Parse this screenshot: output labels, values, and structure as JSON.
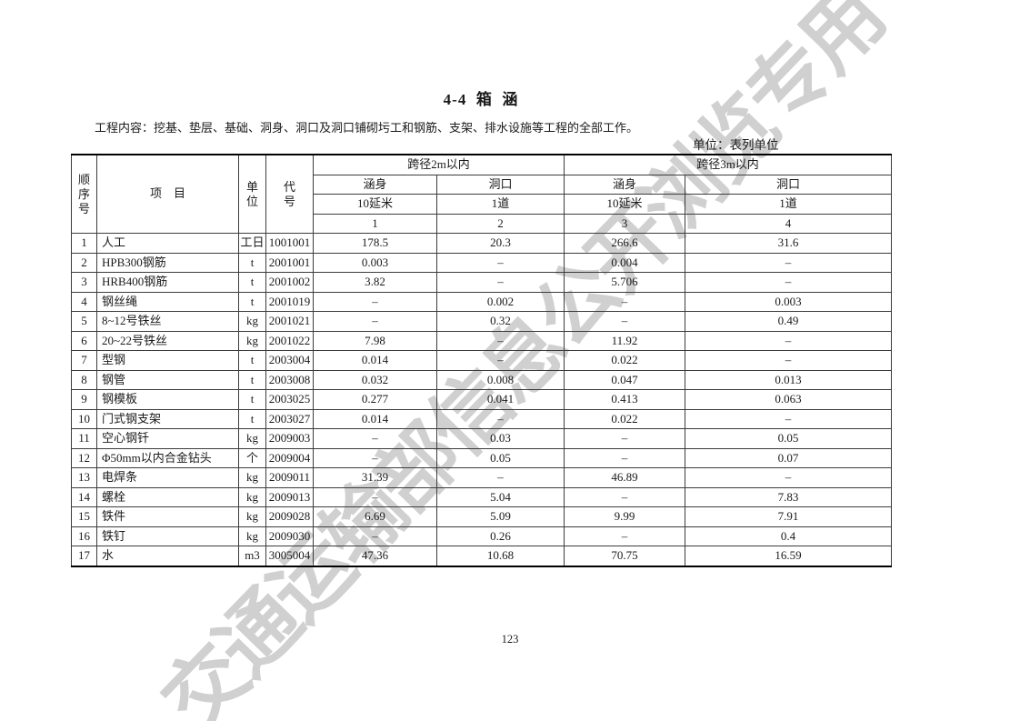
{
  "page": {
    "title": "4-4  箱  涵",
    "content_note": "工程内容：挖基、垫层、基础、洞身、洞口及洞口铺砌圬工和钢筋、支架、排水设施等工程的全部工作。",
    "unit_note": "单位：表列单位",
    "page_number": "123",
    "watermark": "交通运输部信息公开浏览专用"
  },
  "colors": {
    "text": "#1a1a1a",
    "table_line": "#3c3c3c",
    "thick_border": "#000000",
    "watermark_gray": "#c5c5c5"
  },
  "table": {
    "header": {
      "seq": "顺序号",
      "item": "项　目",
      "unit": "单位",
      "code": "代号",
      "group_2m": "跨径2m以内",
      "group_3m": "跨径3m以内",
      "sub_body_2m": "涵身",
      "sub_portal_2m": "洞口",
      "sub_body_3m": "涵身",
      "sub_portal_3m": "洞口",
      "qty_body_2m": "10延米",
      "qty_portal_2m": "1道",
      "qty_body_3m": "10延米",
      "qty_portal_3m": "1道",
      "col_no_1": "1",
      "col_no_2": "2",
      "col_no_3": "3",
      "col_no_4": "4"
    },
    "rows": [
      {
        "seq": "1",
        "item": "人工",
        "unit": "工日",
        "code": "1001001",
        "v1": "178.5",
        "v2": "20.3",
        "v3": "266.6",
        "v4": "31.6"
      },
      {
        "seq": "2",
        "item": "HPB300钢筋",
        "unit": "t",
        "code": "2001001",
        "v1": "0.003",
        "v2": "–",
        "v3": "0.004",
        "v4": "–"
      },
      {
        "seq": "3",
        "item": "HRB400钢筋",
        "unit": "t",
        "code": "2001002",
        "v1": "3.82",
        "v2": "–",
        "v3": "5.706",
        "v4": "–"
      },
      {
        "seq": "4",
        "item": "钢丝绳",
        "unit": "t",
        "code": "2001019",
        "v1": "–",
        "v2": "0.002",
        "v3": "–",
        "v4": "0.003"
      },
      {
        "seq": "5",
        "item": "8~12号铁丝",
        "unit": "kg",
        "code": "2001021",
        "v1": "–",
        "v2": "0.32",
        "v3": "–",
        "v4": "0.49"
      },
      {
        "seq": "6",
        "item": "20~22号铁丝",
        "unit": "kg",
        "code": "2001022",
        "v1": "7.98",
        "v2": "–",
        "v3": "11.92",
        "v4": "–"
      },
      {
        "seq": "7",
        "item": "型钢",
        "unit": "t",
        "code": "2003004",
        "v1": "0.014",
        "v2": "–",
        "v3": "0.022",
        "v4": "–"
      },
      {
        "seq": "8",
        "item": "钢管",
        "unit": "t",
        "code": "2003008",
        "v1": "0.032",
        "v2": "0.008",
        "v3": "0.047",
        "v4": "0.013"
      },
      {
        "seq": "9",
        "item": "钢模板",
        "unit": "t",
        "code": "2003025",
        "v1": "0.277",
        "v2": "0.041",
        "v3": "0.413",
        "v4": "0.063"
      },
      {
        "seq": "10",
        "item": "门式钢支架",
        "unit": "t",
        "code": "2003027",
        "v1": "0.014",
        "v2": "–",
        "v3": "0.022",
        "v4": "–"
      },
      {
        "seq": "11",
        "item": "空心钢钎",
        "unit": "kg",
        "code": "2009003",
        "v1": "–",
        "v2": "0.03",
        "v3": "–",
        "v4": "0.05"
      },
      {
        "seq": "12",
        "item": "Φ50mm以内合金钻头",
        "unit": "个",
        "code": "2009004",
        "v1": "–",
        "v2": "0.05",
        "v3": "–",
        "v4": "0.07"
      },
      {
        "seq": "13",
        "item": "电焊条",
        "unit": "kg",
        "code": "2009011",
        "v1": "31.39",
        "v2": "–",
        "v3": "46.89",
        "v4": "–"
      },
      {
        "seq": "14",
        "item": "螺栓",
        "unit": "kg",
        "code": "2009013",
        "v1": "–",
        "v2": "5.04",
        "v3": "–",
        "v4": "7.83"
      },
      {
        "seq": "15",
        "item": "铁件",
        "unit": "kg",
        "code": "2009028",
        "v1": "6.69",
        "v2": "5.09",
        "v3": "9.99",
        "v4": "7.91"
      },
      {
        "seq": "16",
        "item": "铁钉",
        "unit": "kg",
        "code": "2009030",
        "v1": "–",
        "v2": "0.26",
        "v3": "–",
        "v4": "0.4"
      },
      {
        "seq": "17",
        "item": "水",
        "unit": "m3",
        "code": "3005004",
        "v1": "47.36",
        "v2": "10.68",
        "v3": "70.75",
        "v4": "16.59"
      }
    ]
  }
}
